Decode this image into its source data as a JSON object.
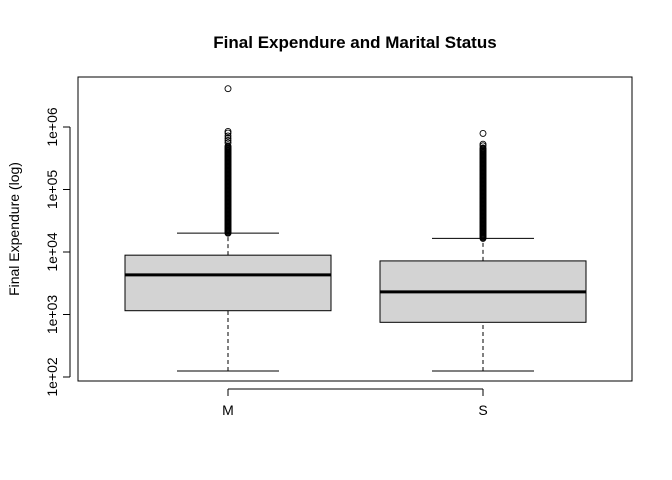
{
  "chart_data": {
    "type": "box",
    "title": "Final Expendure and Marital Status",
    "xlabel": "",
    "ylabel": "Final Expendure (log)",
    "y_scale": "log10",
    "ylim": [
      100,
      6000000
    ],
    "y_ticks": [
      {
        "value": 100,
        "label": "1e+02"
      },
      {
        "value": 1000,
        "label": "1e+03"
      },
      {
        "value": 10000,
        "label": "1e+04"
      },
      {
        "value": 100000,
        "label": "1e+05"
      },
      {
        "value": 1000000,
        "label": "1e+06"
      }
    ],
    "categories": [
      "M",
      "S"
    ],
    "boxes": [
      {
        "name": "M",
        "min": 125,
        "q1": 1150,
        "median": 4300,
        "q3": 8900,
        "max": 20000,
        "outliers_dense_from": 20000,
        "outliers_dense_to": 500000,
        "outliers": [
          560000,
          610000,
          660000,
          720000,
          800000,
          850000,
          4100000
        ]
      },
      {
        "name": "S",
        "min": 125,
        "q1": 750,
        "median": 2300,
        "q3": 7200,
        "max": 16500,
        "outliers_dense_from": 16500,
        "outliers_dense_to": 470000,
        "outliers": [
          500000,
          530000,
          790000
        ]
      }
    ],
    "grid": false,
    "legend": "none",
    "box_fill": "#d3d3d3",
    "line_color": "#000000"
  }
}
